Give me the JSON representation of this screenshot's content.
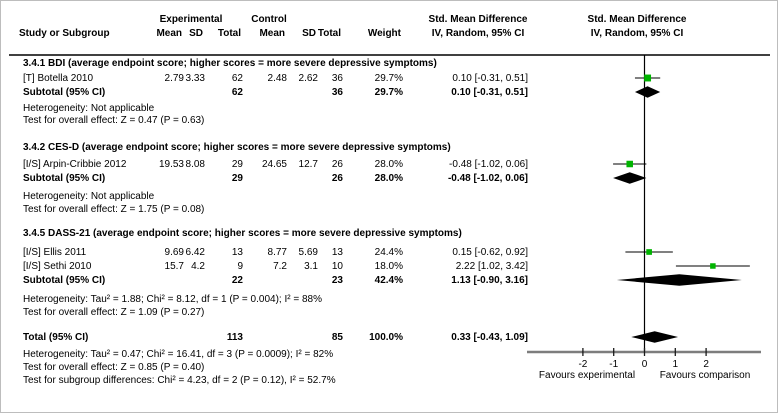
{
  "header": {
    "group_experimental": "Experimental",
    "group_control": "Control",
    "study_col": "Study or Subgroup",
    "mean": "Mean",
    "sd": "SD",
    "total": "Total",
    "weight": "Weight",
    "smd_title": "Std. Mean Difference",
    "smd_sub": "IV, Random, 95% CI"
  },
  "rows": [
    {
      "type": "heading",
      "label": "3.4.1 BDI (average endpoint score; higher scores = more severe depressive symptoms)"
    },
    {
      "type": "study",
      "label": "[T] Botella 2010",
      "mean1": "2.79",
      "sd1": "3.33",
      "total1": "62",
      "mean2": "2.48",
      "sd2": "2.62",
      "total2": "36",
      "weight": "29.7%",
      "ci": "0.10 [-0.31, 0.51]"
    },
    {
      "type": "subtotal",
      "label": "Subtotal (95% CI)",
      "total1": "62",
      "total2": "36",
      "weight": "29.7%",
      "ci": "0.10 [-0.31, 0.51]"
    },
    {
      "type": "stat",
      "label": "Heterogeneity: Not applicable"
    },
    {
      "type": "stat",
      "label": "Test for overall effect: Z = 0.47 (P = 0.63)"
    },
    {
      "type": "heading",
      "label": "3.4.2 CES-D (average endpoint score; higher scores = more severe depressive symptoms)"
    },
    {
      "type": "study",
      "label": "[I/S] Arpin-Cribbie 2012",
      "mean1": "19.53",
      "sd1": "8.08",
      "total1": "29",
      "mean2": "24.65",
      "sd2": "12.7",
      "total2": "26",
      "weight": "28.0%",
      "ci": "-0.48 [-1.02, 0.06]"
    },
    {
      "type": "subtotal",
      "label": "Subtotal (95% CI)",
      "total1": "29",
      "total2": "26",
      "weight": "28.0%",
      "ci": "-0.48 [-1.02, 0.06]"
    },
    {
      "type": "stat",
      "label": "Heterogeneity: Not applicable"
    },
    {
      "type": "stat",
      "label": "Test for overall effect: Z = 1.75 (P = 0.08)"
    },
    {
      "type": "heading",
      "label": "3.4.5 DASS-21 (average endpoint score; higher scores = more severe depressive symptoms)"
    },
    {
      "type": "study",
      "label": "[I/S] Ellis 2011",
      "mean1": "9.69",
      "sd1": "6.42",
      "total1": "13",
      "mean2": "8.77",
      "sd2": "5.69",
      "total2": "13",
      "weight": "24.4%",
      "ci": "0.15 [-0.62, 0.92]"
    },
    {
      "type": "study",
      "label": "[I/S] Sethi 2010",
      "mean1": "15.7",
      "sd1": "4.2",
      "total1": "9",
      "mean2": "7.2",
      "sd2": "3.1",
      "total2": "10",
      "weight": "18.0%",
      "ci": "2.22 [1.02, 3.42]"
    },
    {
      "type": "subtotal",
      "label": "Subtotal (95% CI)",
      "total1": "22",
      "total2": "23",
      "weight": "42.4%",
      "ci": "1.13 [-0.90, 3.16]"
    },
    {
      "type": "stat",
      "label": "Heterogeneity: Tau² = 1.88; Chi² = 8.12, df = 1 (P = 0.004); I² = 88%"
    },
    {
      "type": "stat",
      "label": "Test for overall effect: Z = 1.09 (P = 0.27)"
    },
    {
      "type": "total",
      "label": "Total (95% CI)",
      "total1": "113",
      "total2": "85",
      "weight": "100.0%",
      "ci": "0.33 [-0.43, 1.09]"
    },
    {
      "type": "stat",
      "label": "Heterogeneity: Tau² = 0.47; Chi² = 16.41, df = 3 (P = 0.0009); I² = 82%"
    },
    {
      "type": "stat",
      "label": "Test for overall effect: Z = 0.85 (P = 0.40)"
    },
    {
      "type": "stat",
      "label": "Test for subgroup differences: Chi² = 4.23, df = 2 (P = 0.12), I² = 52.7%"
    }
  ],
  "chart_data": {
    "type": "forest",
    "effect_measure": "Std. Mean Difference",
    "method": "IV, Random, 95% CI",
    "xticks": [
      -2,
      -1,
      0,
      1,
      2
    ],
    "favours_left": "Favours experimental",
    "favours_right": "Favours comparison",
    "marker_color": "#00b400",
    "summary_color": "#000000",
    "marks": [
      {
        "row": 1,
        "kind": "square",
        "label": "[T] Botella 2010",
        "effect": 0.1,
        "lo": -0.31,
        "hi": 0.51,
        "weight_pct": 29.7
      },
      {
        "row": 2,
        "kind": "diamond",
        "label": "BDI Subtotal",
        "effect": 0.1,
        "lo": -0.31,
        "hi": 0.51
      },
      {
        "row": 6,
        "kind": "square",
        "label": "[I/S] Arpin-Cribbie 2012",
        "effect": -0.48,
        "lo": -1.02,
        "hi": 0.06,
        "weight_pct": 28.0
      },
      {
        "row": 7,
        "kind": "diamond",
        "label": "CES-D Subtotal",
        "effect": -0.48,
        "lo": -1.02,
        "hi": 0.06
      },
      {
        "row": 11,
        "kind": "square",
        "label": "[I/S] Ellis 2011",
        "effect": 0.15,
        "lo": -0.62,
        "hi": 0.92,
        "weight_pct": 24.4
      },
      {
        "row": 12,
        "kind": "square",
        "label": "[I/S] Sethi 2010",
        "effect": 2.22,
        "lo": 1.02,
        "hi": 3.42,
        "weight_pct": 18.0
      },
      {
        "row": 13,
        "kind": "diamond",
        "label": "DASS-21 Subtotal",
        "effect": 1.13,
        "lo": -0.9,
        "hi": 3.16
      },
      {
        "row": 16,
        "kind": "diamond",
        "label": "Total",
        "effect": 0.33,
        "lo": -0.43,
        "hi": 1.09
      }
    ]
  }
}
